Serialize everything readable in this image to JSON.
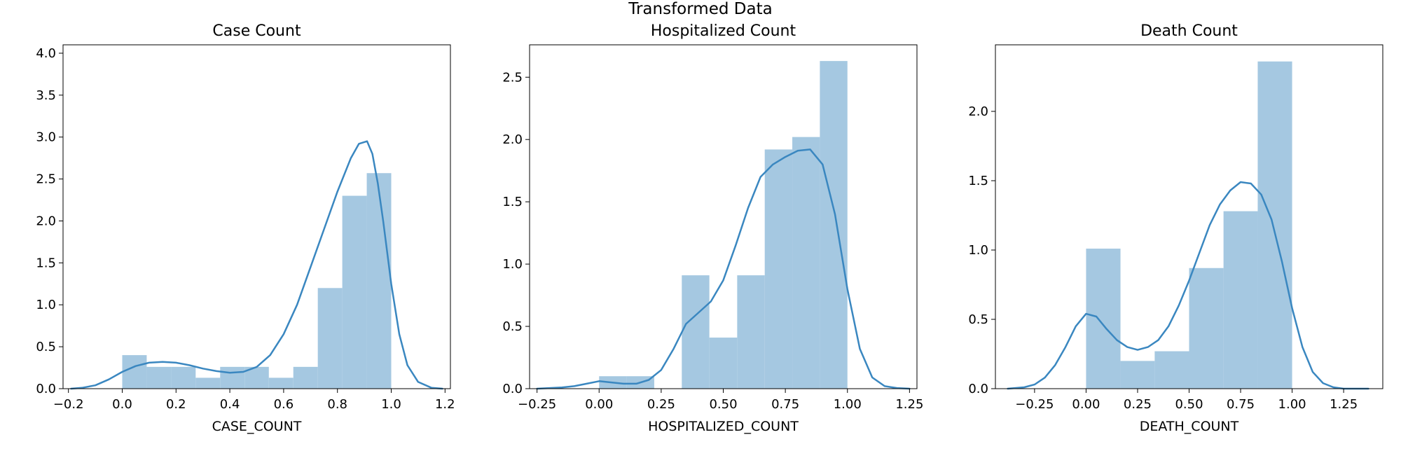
{
  "figure": {
    "suptitle": "Transformed Data"
  },
  "colors": {
    "hist_fill": "#a5c8e1",
    "kde_line": "#3a87c0",
    "axis": "#000000"
  },
  "chart_data": [
    {
      "type": "histogram+kde",
      "title": "Case Count",
      "xlabel": "CASE_COUNT",
      "ylabel": "",
      "xlim": [
        -0.22,
        1.22
      ],
      "ylim": [
        0,
        4.1
      ],
      "xticks": [
        -0.2,
        0.0,
        0.2,
        0.4,
        0.6,
        0.8,
        1.0,
        1.2
      ],
      "xtick_labels": [
        "−0.2",
        "0.0",
        "0.2",
        "0.4",
        "0.6",
        "0.8",
        "1.0",
        "1.2"
      ],
      "yticks": [
        0.0,
        0.5,
        1.0,
        1.5,
        2.0,
        2.5,
        3.0,
        3.5,
        4.0
      ],
      "ytick_labels": [
        "0.0",
        "0.5",
        "1.0",
        "1.5",
        "2.0",
        "2.5",
        "3.0",
        "3.5",
        "4.0"
      ],
      "bins": [
        {
          "x0": 0.0,
          "x1": 0.091,
          "y": 0.4
        },
        {
          "x0": 0.091,
          "x1": 0.182,
          "y": 0.26
        },
        {
          "x0": 0.182,
          "x1": 0.273,
          "y": 0.26
        },
        {
          "x0": 0.273,
          "x1": 0.364,
          "y": 0.13
        },
        {
          "x0": 0.364,
          "x1": 0.455,
          "y": 0.26
        },
        {
          "x0": 0.455,
          "x1": 0.545,
          "y": 0.26
        },
        {
          "x0": 0.545,
          "x1": 0.636,
          "y": 0.13
        },
        {
          "x0": 0.636,
          "x1": 0.727,
          "y": 0.26
        },
        {
          "x0": 0.727,
          "x1": 0.818,
          "y": 1.2
        },
        {
          "x0": 0.818,
          "x1": 0.909,
          "y": 2.3
        },
        {
          "x0": 0.909,
          "x1": 1.0,
          "y": 2.57
        },
        {
          "x0": 1.0,
          "x1": 1.0001,
          "y": 0
        }
      ],
      "kde_x": [
        -0.19,
        -0.15,
        -0.1,
        -0.05,
        0.0,
        0.05,
        0.1,
        0.15,
        0.2,
        0.25,
        0.3,
        0.35,
        0.4,
        0.45,
        0.5,
        0.55,
        0.6,
        0.65,
        0.7,
        0.75,
        0.8,
        0.85,
        0.88,
        0.91,
        0.93,
        0.95,
        0.97,
        1.0,
        1.03,
        1.06,
        1.1,
        1.15,
        1.19
      ],
      "kde_y": [
        0.0,
        0.01,
        0.04,
        0.11,
        0.2,
        0.27,
        0.31,
        0.32,
        0.31,
        0.28,
        0.24,
        0.21,
        0.19,
        0.2,
        0.26,
        0.4,
        0.65,
        1.0,
        1.45,
        1.9,
        2.35,
        2.75,
        2.92,
        2.95,
        2.8,
        2.45,
        2.0,
        1.25,
        0.65,
        0.28,
        0.08,
        0.01,
        0.0
      ]
    },
    {
      "type": "histogram+kde",
      "title": "Hospitalized Count",
      "xlabel": "HOSPITALIZED_COUNT",
      "ylabel": "",
      "xlim": [
        -0.28,
        1.28
      ],
      "ylim": [
        0,
        2.76
      ],
      "xticks": [
        -0.25,
        0.0,
        0.25,
        0.5,
        0.75,
        1.0,
        1.25
      ],
      "xtick_labels": [
        "−0.25",
        "0.00",
        "0.25",
        "0.50",
        "0.75",
        "1.00",
        "1.25"
      ],
      "yticks": [
        0.0,
        0.5,
        1.0,
        1.5,
        2.0,
        2.5
      ],
      "ytick_labels": [
        "0.0",
        "0.5",
        "1.0",
        "1.5",
        "2.0",
        "2.5"
      ],
      "bins": [
        {
          "x0": 0.0,
          "x1": 0.111,
          "y": 0.1
        },
        {
          "x0": 0.111,
          "x1": 0.222,
          "y": 0.1
        },
        {
          "x0": 0.222,
          "x1": 0.333,
          "y": 0.0
        },
        {
          "x0": 0.333,
          "x1": 0.444,
          "y": 0.91
        },
        {
          "x0": 0.444,
          "x1": 0.556,
          "y": 0.41
        },
        {
          "x0": 0.556,
          "x1": 0.667,
          "y": 0.91
        },
        {
          "x0": 0.667,
          "x1": 0.778,
          "y": 1.92
        },
        {
          "x0": 0.778,
          "x1": 0.889,
          "y": 2.02
        },
        {
          "x0": 0.889,
          "x1": 1.0,
          "y": 2.63
        }
      ],
      "kde_x": [
        -0.25,
        -0.2,
        -0.15,
        -0.1,
        -0.05,
        0.0,
        0.05,
        0.1,
        0.15,
        0.2,
        0.25,
        0.3,
        0.35,
        0.4,
        0.45,
        0.5,
        0.55,
        0.6,
        0.65,
        0.7,
        0.75,
        0.8,
        0.85,
        0.9,
        0.95,
        1.0,
        1.05,
        1.1,
        1.15,
        1.2,
        1.25
      ],
      "kde_y": [
        0.0,
        0.005,
        0.01,
        0.02,
        0.04,
        0.06,
        0.05,
        0.04,
        0.04,
        0.07,
        0.15,
        0.32,
        0.52,
        0.61,
        0.7,
        0.87,
        1.15,
        1.45,
        1.7,
        1.8,
        1.86,
        1.91,
        1.92,
        1.8,
        1.4,
        0.8,
        0.32,
        0.09,
        0.02,
        0.005,
        0.0
      ]
    },
    {
      "type": "histogram+kde",
      "title": "Death Count",
      "xlabel": "DEATH_COUNT",
      "ylabel": "",
      "xlim": [
        -0.44,
        1.44
      ],
      "ylim": [
        0,
        2.48
      ],
      "xticks": [
        -0.25,
        0.0,
        0.25,
        0.5,
        0.75,
        1.0,
        1.25
      ],
      "xtick_labels": [
        "−0.25",
        "0.00",
        "0.25",
        "0.50",
        "0.75",
        "1.00",
        "1.25"
      ],
      "yticks": [
        0.0,
        0.5,
        1.0,
        1.5,
        2.0
      ],
      "ytick_labels": [
        "0.0",
        "0.5",
        "1.0",
        "1.5",
        "2.0"
      ],
      "bins": [
        {
          "x0": 0.0,
          "x1": 0.167,
          "y": 1.01
        },
        {
          "x0": 0.167,
          "x1": 0.333,
          "y": 0.2
        },
        {
          "x0": 0.333,
          "x1": 0.5,
          "y": 0.27
        },
        {
          "x0": 0.5,
          "x1": 0.667,
          "y": 0.87
        },
        {
          "x0": 0.667,
          "x1": 0.833,
          "y": 1.28
        },
        {
          "x0": 0.833,
          "x1": 1.0,
          "y": 2.36
        }
      ],
      "kde_x": [
        -0.38,
        -0.3,
        -0.25,
        -0.2,
        -0.15,
        -0.1,
        -0.05,
        0.0,
        0.05,
        0.1,
        0.15,
        0.2,
        0.25,
        0.3,
        0.35,
        0.4,
        0.45,
        0.5,
        0.55,
        0.6,
        0.65,
        0.7,
        0.75,
        0.8,
        0.85,
        0.9,
        0.95,
        1.0,
        1.05,
        1.1,
        1.15,
        1.2,
        1.25,
        1.3,
        1.37
      ],
      "kde_y": [
        0.0,
        0.01,
        0.03,
        0.08,
        0.17,
        0.3,
        0.45,
        0.54,
        0.52,
        0.43,
        0.35,
        0.3,
        0.28,
        0.3,
        0.35,
        0.45,
        0.6,
        0.78,
        0.98,
        1.18,
        1.33,
        1.43,
        1.49,
        1.48,
        1.4,
        1.22,
        0.92,
        0.58,
        0.3,
        0.12,
        0.04,
        0.01,
        0.0,
        0.0,
        0.0
      ]
    }
  ]
}
